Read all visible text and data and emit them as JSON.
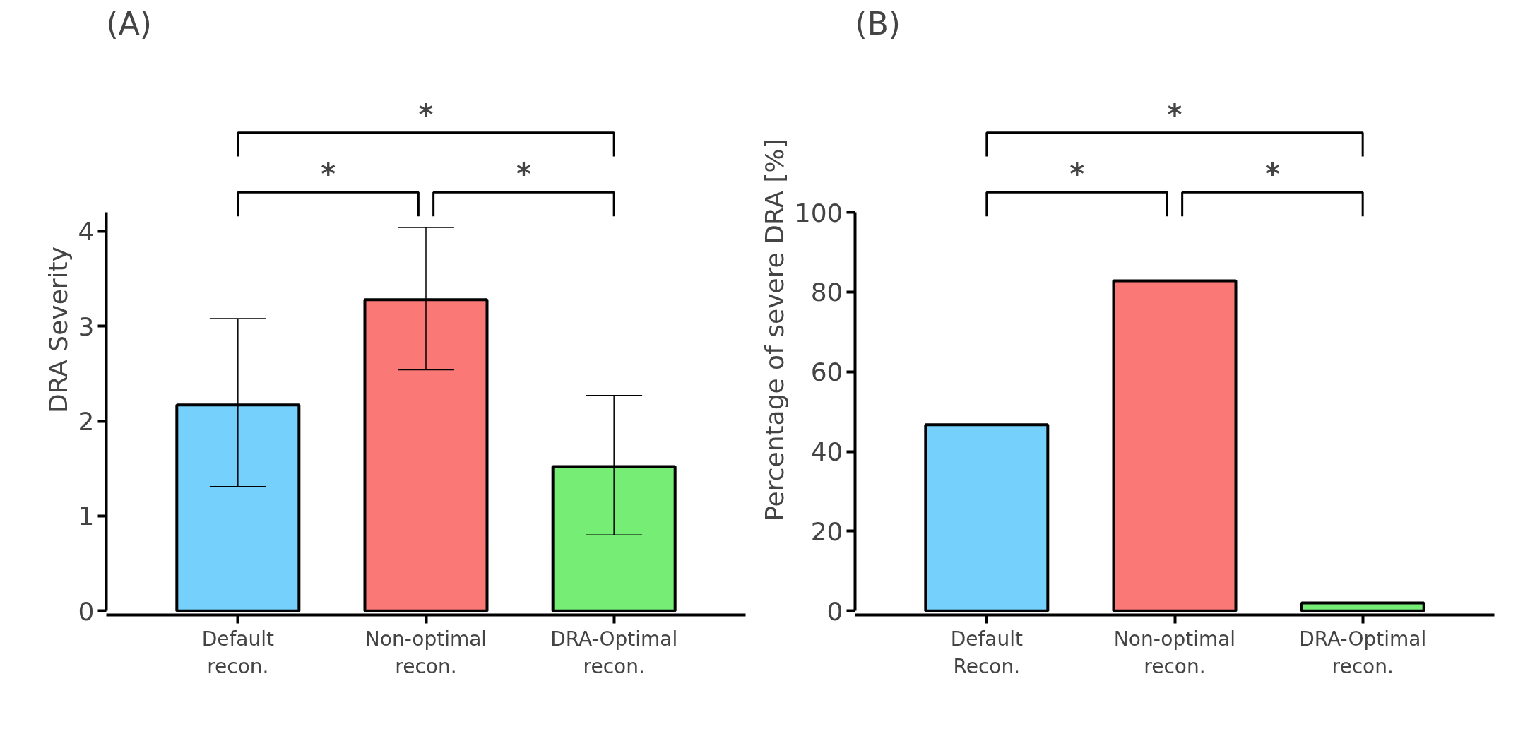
{
  "chart_data": [
    {
      "type": "bar",
      "title": "(A)",
      "ylabel": "DRA Severity",
      "categories": [
        "Default recon.",
        "Non-optimal recon.",
        "DRA-Optimal recon."
      ],
      "values": [
        2.17,
        3.28,
        1.52
      ],
      "colors": [
        "#75d0fc",
        "#fa7876",
        "#76ee76"
      ],
      "errors": [
        [
          1.31,
          3.08
        ],
        [
          2.54,
          4.04
        ],
        [
          0.8,
          2.27
        ]
      ],
      "ylim": [
        0,
        4.2
      ],
      "yticks": [
        0,
        1,
        2,
        3,
        4
      ],
      "annotations": [
        "*",
        "*",
        "*"
      ]
    },
    {
      "type": "bar",
      "title": "(B)",
      "ylabel": "Percentage of severe DRA [%]",
      "categories": [
        "Default Recon.",
        "Non-optimal recon.",
        "DRA-Optimal recon."
      ],
      "values": [
        46.7,
        82.8,
        2
      ],
      "colors": [
        "#75d0fc",
        "#fa7876",
        "#76ee76"
      ],
      "ylim": [
        0,
        100
      ],
      "yticks": [
        0,
        20,
        40,
        60,
        80,
        100
      ],
      "annotations": [
        "*",
        "*",
        "*"
      ]
    }
  ]
}
